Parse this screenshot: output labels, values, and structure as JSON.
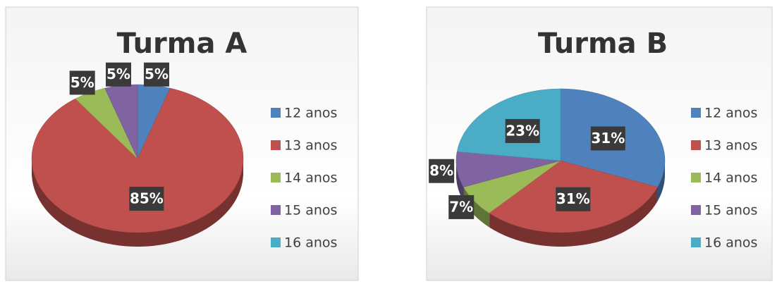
{
  "chart_data": [
    {
      "type": "pie",
      "title": "Turma A",
      "categories": [
        "12 anos",
        "13 anos",
        "14 anos",
        "15 anos",
        "16 anos"
      ],
      "values": [
        5,
        85,
        5,
        5,
        0
      ],
      "value_labels": [
        "5%",
        "85%",
        "5%",
        "5%",
        null
      ],
      "colors": [
        "#4f81bd",
        "#c0504d",
        "#9bbb59",
        "#8064a2",
        "#4bacc6"
      ],
      "legend": "right"
    },
    {
      "type": "pie",
      "title": "Turma B",
      "categories": [
        "12 anos",
        "13 anos",
        "14 anos",
        "15 anos",
        "16 anos"
      ],
      "values": [
        31,
        31,
        7,
        8,
        23
      ],
      "value_labels": [
        "31%",
        "31%",
        "7%",
        "8%",
        "23%"
      ],
      "colors": [
        "#4f81bd",
        "#c0504d",
        "#9bbb59",
        "#8064a2",
        "#4bacc6"
      ],
      "legend": "right"
    }
  ]
}
